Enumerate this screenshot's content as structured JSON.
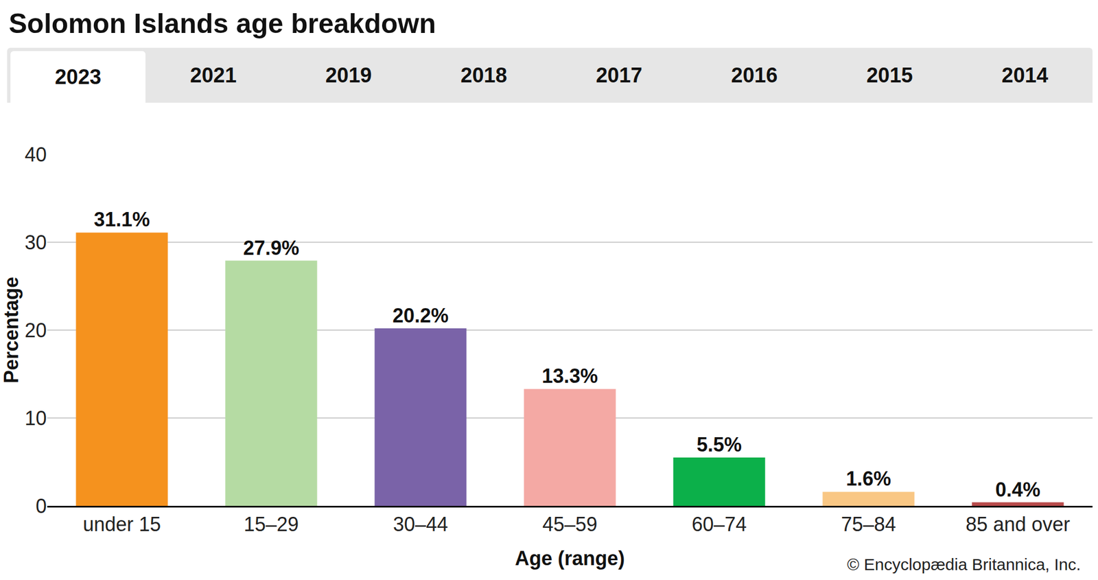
{
  "tabs": [
    "2023",
    "2021",
    "2019",
    "2018",
    "2017",
    "2016",
    "2015",
    "2014"
  ],
  "chart_data": {
    "type": "bar",
    "title": "Solomon Islands age breakdown",
    "x_label": "Age (range)",
    "y_label": "Percentage",
    "categories": [
      "under 15",
      "15–29",
      "30–44",
      "45–59",
      "60–74",
      "75–84",
      "85 and over"
    ],
    "values": [
      31.1,
      27.9,
      20.2,
      13.3,
      5.5,
      1.6,
      0.4
    ],
    "value_labels": [
      "31.1%",
      "27.9%",
      "20.2%",
      "13.3%",
      "5.5%",
      "1.6%",
      "0.4%"
    ],
    "colors": [
      "#f5921e",
      "#b5dba3",
      "#7a63a8",
      "#f4a9a4",
      "#0cb04a",
      "#f9c784",
      "#b84b4b"
    ],
    "ylim": [
      0,
      40
    ],
    "yticks": [
      0,
      10,
      20,
      30,
      40
    ],
    "grid": true,
    "data_labels": true,
    "annotations": [
      "© Encyclopædia Britannica, Inc."
    ]
  }
}
